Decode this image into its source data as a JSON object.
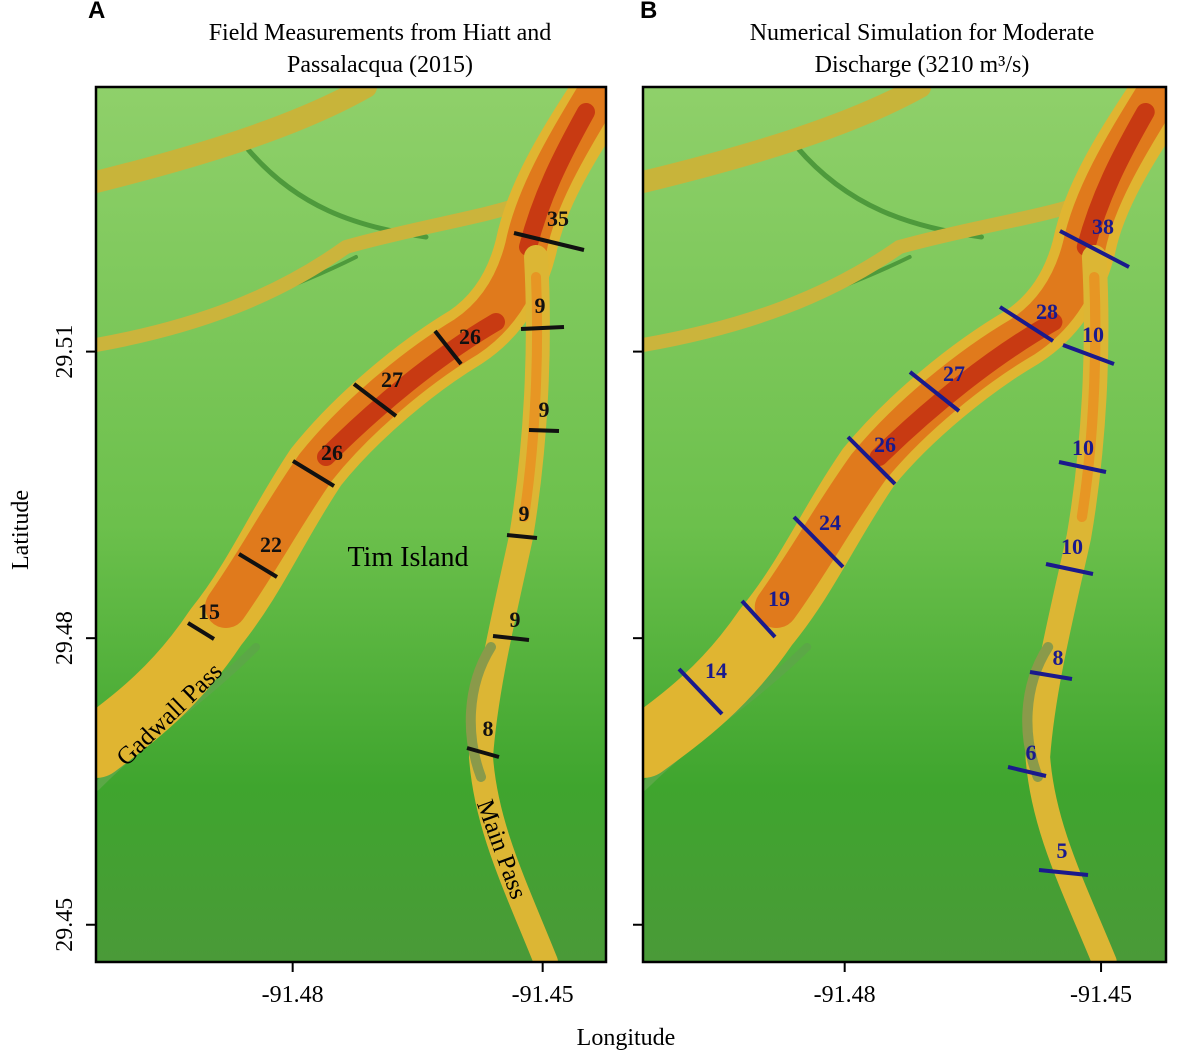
{
  "panels": [
    {
      "label": "A",
      "title": [
        "Field Measurements from Hiatt and",
        "Passalacqua (2015)"
      ],
      "transects": [
        35,
        9,
        26,
        9,
        27,
        26,
        9,
        22,
        9,
        15,
        8
      ],
      "places": [
        "Tim Island",
        "Gadwall Pass",
        "Main Pass"
      ]
    },
    {
      "label": "B",
      "title": [
        "Numerical Simulation for Moderate",
        "Discharge (3210 m³/s)"
      ],
      "transects": [
        38,
        28,
        10,
        27,
        10,
        26,
        10,
        24,
        19,
        8,
        14,
        6,
        5
      ]
    }
  ],
  "x_axis": {
    "label": "Longitude",
    "ticks": [
      -91.48,
      -91.45
    ],
    "xlim": [
      -91.5036,
      -91.4424
    ]
  },
  "y_axis": {
    "label": "Latitude",
    "ticks": [
      29.51,
      29.48,
      29.45
    ],
    "ylim": [
      29.4461,
      29.5377
    ]
  }
}
